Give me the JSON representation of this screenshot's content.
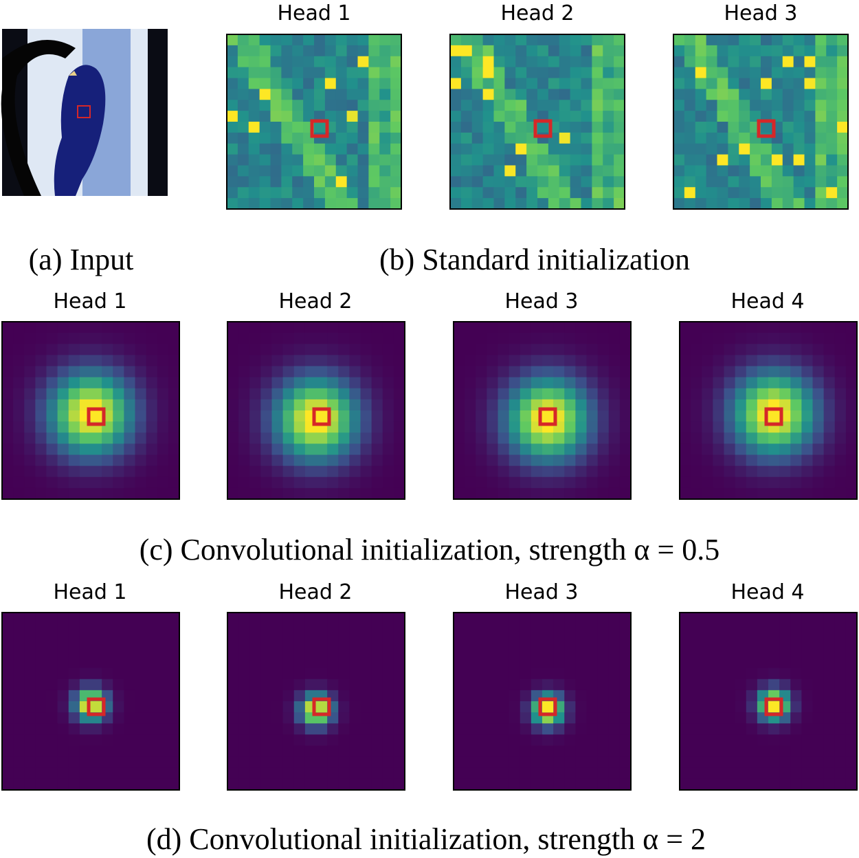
{
  "panels": [
    {
      "caption": "(a) Input"
    },
    {
      "caption": "(b) Standard initialization",
      "heads": [
        "Head 1",
        "Head 2",
        "Head 3"
      ]
    },
    {
      "caption": "(c) Convolutional initialization, strength α = 0.5",
      "heads": [
        "Head 1",
        "Head 2",
        "Head 3",
        "Head 4"
      ]
    },
    {
      "caption": "(d) Convolutional initialization, strength α = 2",
      "heads": [
        "Head 1",
        "Head 2",
        "Head 3",
        "Head 4"
      ]
    }
  ]
}
